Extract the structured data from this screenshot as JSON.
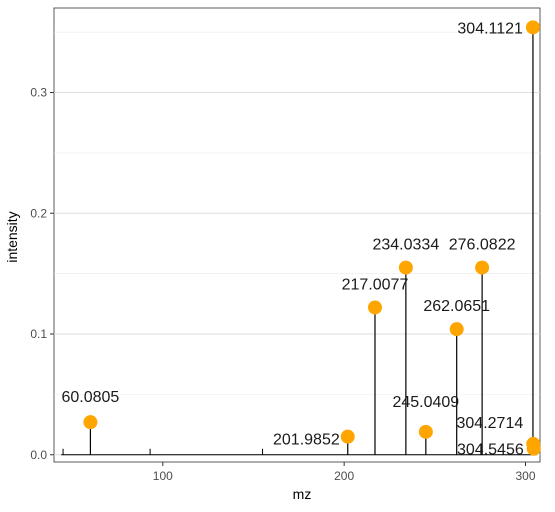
{
  "chart_data": {
    "type": "scatter",
    "title": "",
    "xlabel": "mz",
    "ylabel": "intensity",
    "xlim": [
      40,
      308
    ],
    "ylim": [
      -0.006,
      0.37
    ],
    "x_ticks": [
      100,
      200,
      300
    ],
    "y_ticks": [
      0.0,
      0.1,
      0.2,
      0.3
    ],
    "x_tick_labels": [
      "100",
      "200",
      "300"
    ],
    "y_tick_labels": [
      "0.0",
      "0.1",
      "0.2",
      "0.3"
    ],
    "grid": true,
    "point_color": "#FFA500",
    "stem_color": "#000000",
    "baseline_ticks": [
      45,
      93,
      155
    ],
    "labeled_peaks": [
      {
        "mz": 60.0805,
        "intensity": 0.027,
        "label": "60.0805"
      },
      {
        "mz": 201.9852,
        "intensity": 0.015,
        "label": "201.9852"
      },
      {
        "mz": 217.0077,
        "intensity": 0.122,
        "label": "217.0077"
      },
      {
        "mz": 234.0334,
        "intensity": 0.155,
        "label": "234.0334"
      },
      {
        "mz": 245.0409,
        "intensity": 0.019,
        "label": "245.0409"
      },
      {
        "mz": 262.0651,
        "intensity": 0.104,
        "label": "262.0651"
      },
      {
        "mz": 276.0822,
        "intensity": 0.155,
        "label": "276.0822"
      },
      {
        "mz": 304.1121,
        "intensity": 0.354,
        "label": "304.1121"
      },
      {
        "mz": 304.2714,
        "intensity": 0.009,
        "label": "304.2714"
      },
      {
        "mz": 304.5456,
        "intensity": 0.005,
        "label": "304.5456"
      }
    ]
  }
}
